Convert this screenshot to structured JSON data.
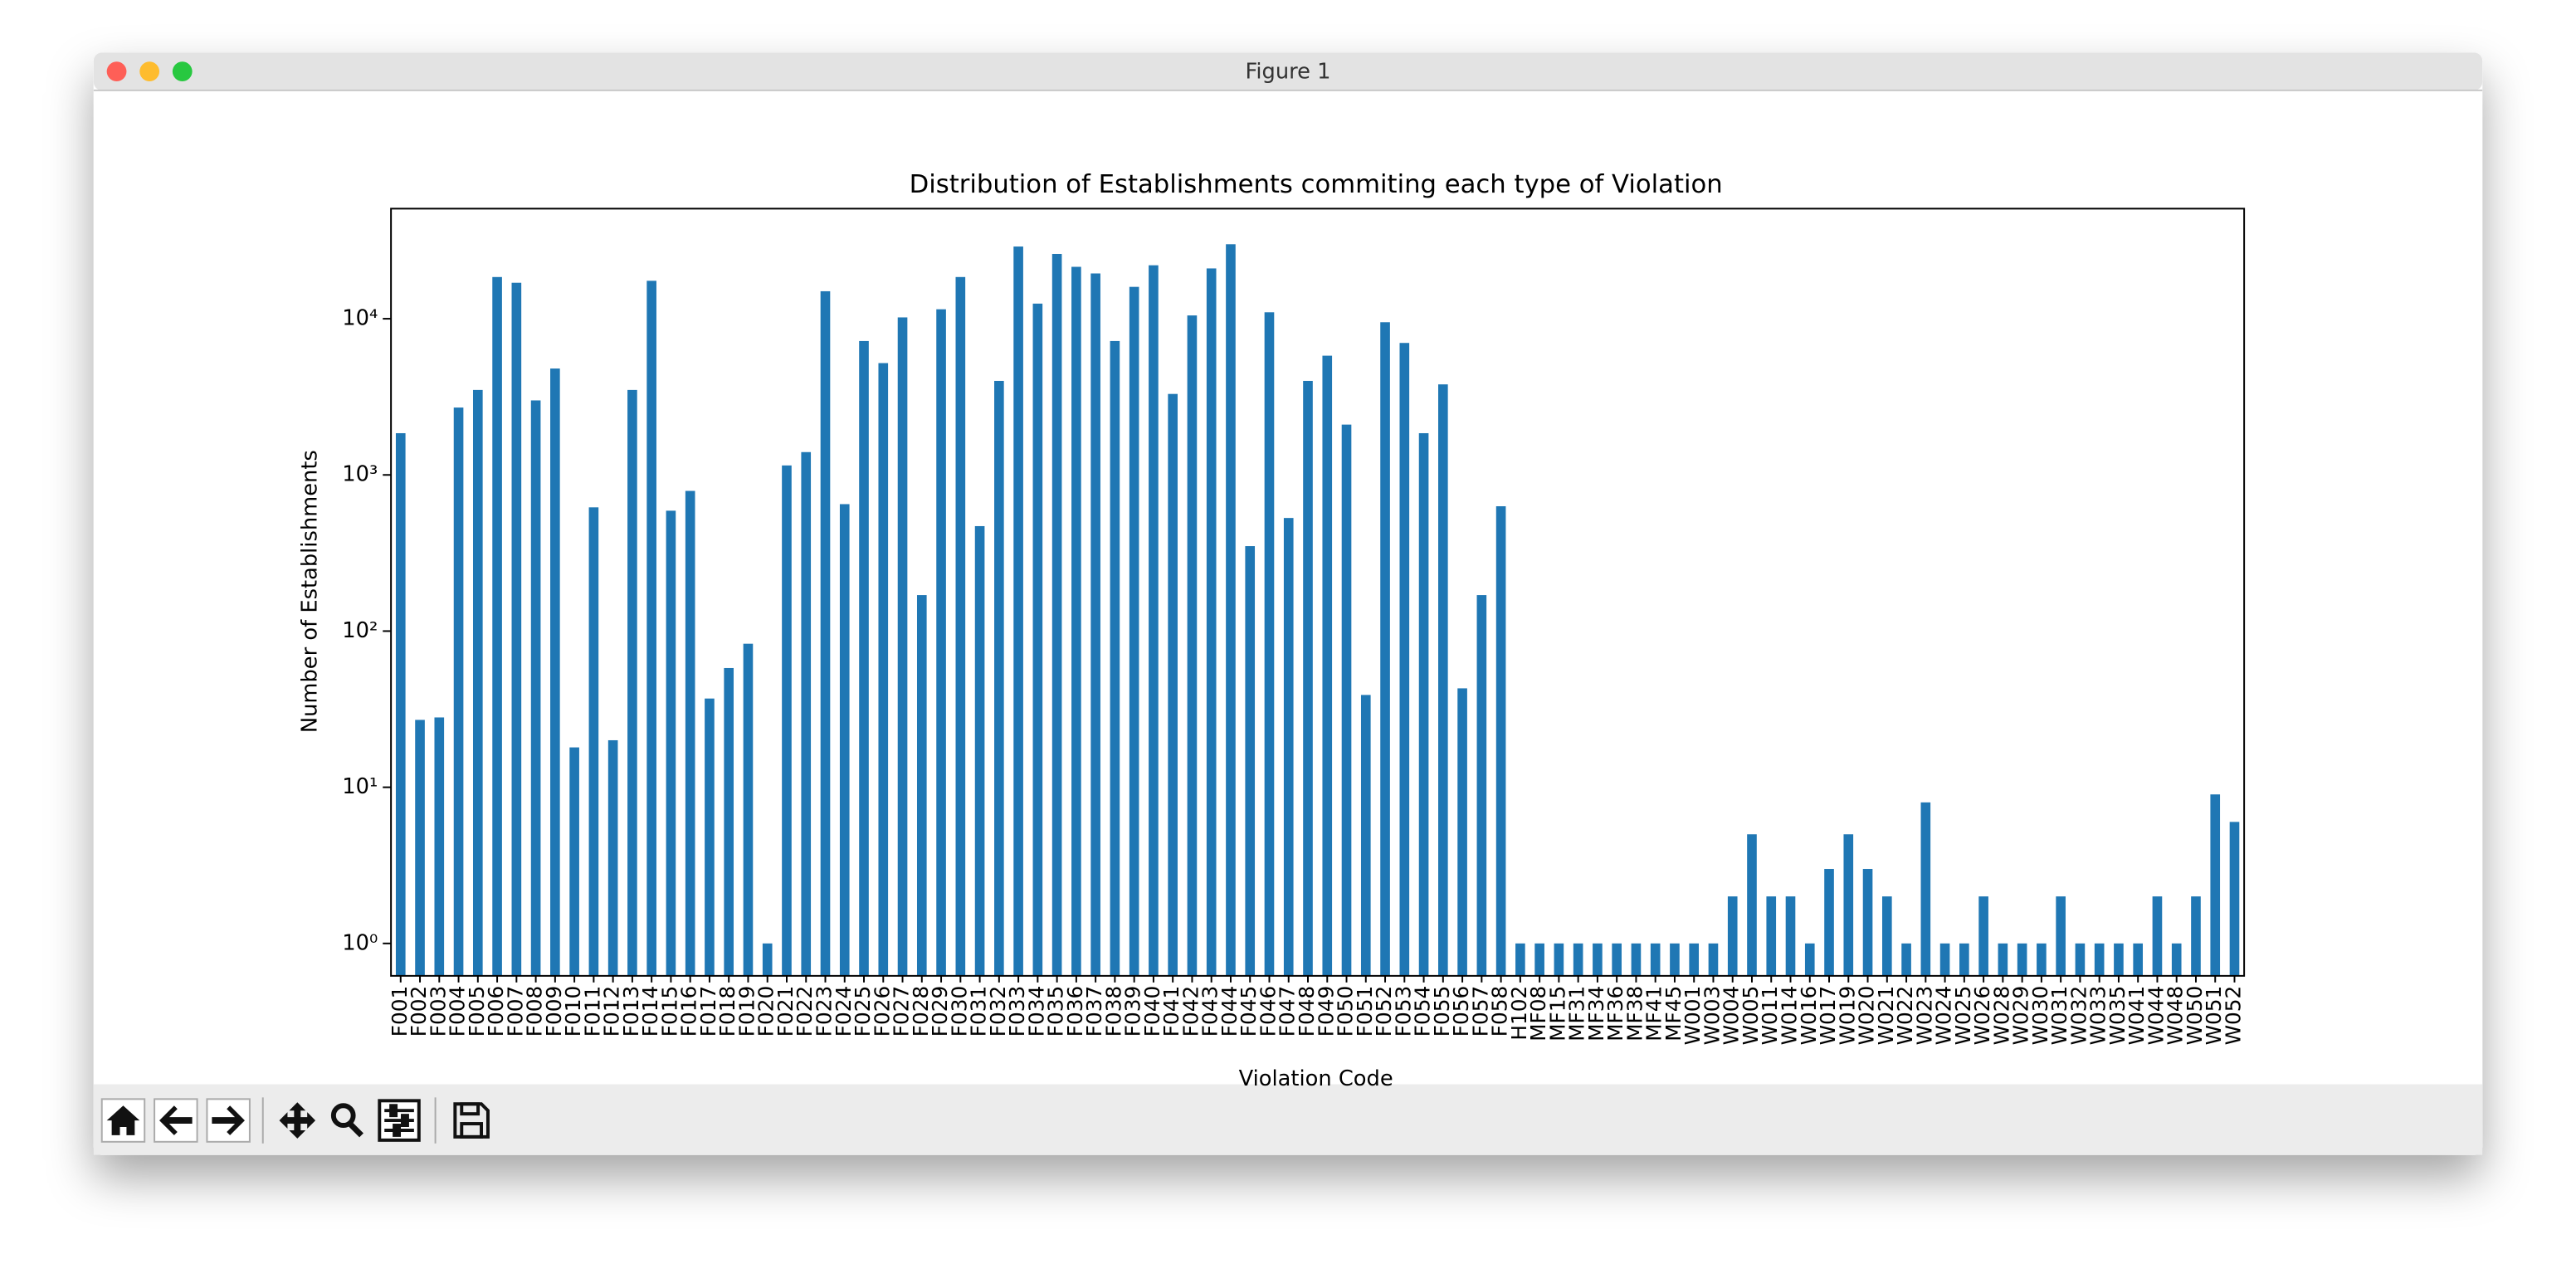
{
  "window_title": "Figure 1",
  "chart_data": {
    "type": "bar",
    "title": "Distribution of Establishments commiting each type of Violation",
    "xlabel": "Violation Code",
    "ylabel": "Number of Establishments",
    "categories": [
      "F001",
      "F002",
      "F003",
      "F004",
      "F005",
      "F006",
      "F007",
      "F008",
      "F009",
      "F010",
      "F011",
      "F012",
      "F013",
      "F014",
      "F015",
      "F016",
      "F017",
      "F018",
      "F019",
      "F020",
      "F021",
      "F022",
      "F023",
      "F024",
      "F025",
      "F026",
      "F027",
      "F028",
      "F029",
      "F030",
      "F031",
      "F032",
      "F033",
      "F034",
      "F035",
      "F036",
      "F037",
      "F038",
      "F039",
      "F040",
      "F041",
      "F042",
      "F043",
      "F044",
      "F045",
      "F046",
      "F047",
      "F048",
      "F049",
      "F050",
      "F051",
      "F052",
      "F053",
      "F054",
      "F055",
      "F056",
      "F057",
      "F058",
      "H102",
      "MF08",
      "MF15",
      "MF31",
      "MF34",
      "MF36",
      "MF38",
      "MF41",
      "MF45",
      "W001",
      "W003",
      "W004",
      "W005",
      "W011",
      "W014",
      "W016",
      "W017",
      "W019",
      "W020",
      "W021",
      "W022",
      "W023",
      "W024",
      "W025",
      "W026",
      "W028",
      "W029",
      "W030",
      "W031",
      "W032",
      "W033",
      "W035",
      "W041",
      "W044",
      "W048",
      "W050",
      "W051",
      "W052"
    ],
    "values": [
      1850,
      27,
      28,
      2700,
      3500,
      18500,
      17000,
      3000,
      4800,
      18,
      620,
      20,
      3500,
      17500,
      590,
      790,
      37,
      58,
      83,
      1,
      1150,
      1400,
      15000,
      650,
      7200,
      5200,
      10200,
      170,
      11500,
      18500,
      470,
      4000,
      29000,
      12500,
      26000,
      21500,
      19500,
      7200,
      16000,
      22000,
      3300,
      10500,
      21000,
      30000,
      350,
      11000,
      530,
      4000,
      5800,
      2100,
      39,
      9500,
      7000,
      1850,
      3800,
      43,
      170,
      630,
      1,
      1,
      1,
      1,
      1,
      1,
      1,
      1,
      1,
      1,
      1,
      2,
      5,
      2,
      2,
      1,
      3,
      5,
      3,
      2,
      1,
      8,
      1,
      1,
      2,
      1,
      1,
      1,
      2,
      1,
      1,
      1,
      1,
      2,
      1,
      2,
      9,
      6
    ],
    "color": "#1f77b4",
    "log_scale": true,
    "ylim": [
      0.62,
      50700
    ],
    "yticks": [
      {
        "value": 1,
        "label": "10⁰"
      },
      {
        "value": 10,
        "label": "10¹"
      },
      {
        "value": 100,
        "label": "10²"
      },
      {
        "value": 1000,
        "label": "10³"
      },
      {
        "value": 10000,
        "label": "10⁴"
      }
    ],
    "grid": false
  }
}
